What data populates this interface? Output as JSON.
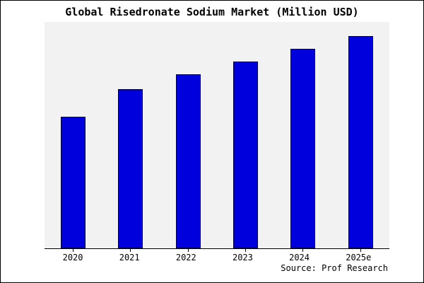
{
  "title": "Global Risedronate Sodium Market (Million USD)",
  "source": "Source: Prof Research",
  "chart_data": {
    "type": "bar",
    "categories": [
      "2020",
      "2021",
      "2022",
      "2023",
      "2024",
      "2025e"
    ],
    "values": [
      62,
      75,
      82,
      88,
      94,
      100
    ],
    "title": "Global Risedronate Sodium Market (Million USD)",
    "xlabel": "",
    "ylabel": "",
    "ylim": [
      0,
      106.7
    ],
    "grid": false,
    "legend_position": "none",
    "bar_color": "#0000dd",
    "bar_border_color": "#000040",
    "plot_background": "#f2f2f2",
    "figure_background": "#ffffff",
    "annotations": [
      "Source: Prof Research"
    ]
  }
}
